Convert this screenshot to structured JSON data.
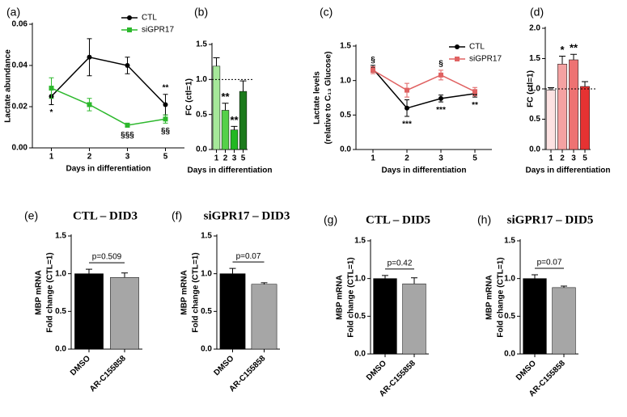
{
  "chart_data": [
    {
      "type": "line",
      "panel_label": "(a)",
      "ylabel": [
        "Lactate abundance"
      ],
      "xlabel": "Days in differentiation",
      "categories": [
        "1",
        "2",
        "3",
        "5"
      ],
      "series": [
        {
          "name": "CTL",
          "color": "#000000",
          "marker": "circle",
          "values": [
            0.025,
            0.044,
            0.04,
            0.021
          ],
          "errors": [
            0.004,
            0.009,
            0.004,
            0.005
          ],
          "significance": [
            "*",
            null,
            null,
            "**"
          ]
        },
        {
          "name": "siGPR17",
          "color": "#2db82d",
          "marker": "square",
          "values": [
            0.029,
            0.021,
            0.011,
            0.014
          ],
          "errors": [
            0.005,
            0.003,
            0.001,
            0.002
          ],
          "significance": [
            null,
            null,
            "§§§",
            "§§"
          ]
        }
      ],
      "ylim": [
        0,
        0.06
      ],
      "yticks": [
        {
          "value": 0,
          "label": "0.00"
        },
        {
          "value": 0.02,
          "label": "0.02"
        },
        {
          "value": 0.04,
          "label": "0.04"
        },
        {
          "value": 0.06,
          "label": "0.06"
        }
      ]
    },
    {
      "type": "bar",
      "panel_label": "(b)",
      "ylabel": [
        "FC (ctl=1)"
      ],
      "xlabel": "Days in differentiation",
      "categories": [
        "1",
        "2",
        "3",
        "5"
      ],
      "values": [
        1.19,
        0.56,
        0.28,
        0.83
      ],
      "errors": [
        0.12,
        0.1,
        0.05,
        0.15
      ],
      "colors": [
        "#a6e89a",
        "#55d04a",
        "#22b822",
        "#1b7a1b"
      ],
      "significance": [
        null,
        "**",
        "**",
        null
      ],
      "reference_line": 1,
      "ylim": [
        0,
        1.5
      ],
      "yticks": [
        {
          "value": 0,
          "label": "0.0"
        },
        {
          "value": 0.5,
          "label": "0.5"
        },
        {
          "value": 1,
          "label": "1.0"
        },
        {
          "value": 1.5,
          "label": "1.5"
        }
      ]
    },
    {
      "type": "line",
      "panel_label": "(c)",
      "ylabel": [
        "Lactate levels",
        "(relative to C₁₃ Glucose)"
      ],
      "xlabel": "Days in differentiation",
      "categories": [
        "1",
        "2",
        "3",
        "5"
      ],
      "series": [
        {
          "name": "CTL",
          "color": "#000000",
          "marker": "circle",
          "values": [
            1.17,
            0.6,
            0.74,
            0.81
          ],
          "errors": [
            0.05,
            0.12,
            0.05,
            0.05
          ],
          "significance": [
            null,
            "***",
            "***",
            "**"
          ]
        },
        {
          "name": "siGPR17",
          "color": "#e06262",
          "marker": "square",
          "values": [
            1.15,
            0.86,
            1.08,
            0.84
          ],
          "errors": [
            0.05,
            0.1,
            0.07,
            0.06
          ],
          "significance": [
            "§",
            null,
            "§",
            null
          ]
        }
      ],
      "ylim": [
        0,
        1.5
      ],
      "yticks": [
        {
          "value": 0,
          "label": "0.0"
        },
        {
          "value": 0.5,
          "label": "0.5"
        },
        {
          "value": 1,
          "label": "1.0"
        },
        {
          "value": 1.5,
          "label": "1.5"
        }
      ]
    },
    {
      "type": "bar",
      "panel_label": "(d)",
      "ylabel": [
        "FC (ctl=1)"
      ],
      "xlabel": "Days in differentiation",
      "categories": [
        "1",
        "2",
        "3",
        "5"
      ],
      "values": [
        0.98,
        1.41,
        1.48,
        1.04
      ],
      "errors": [
        0.04,
        0.13,
        0.09,
        0.08
      ],
      "colors": [
        "#fde2e2",
        "#f4a2a2",
        "#ee7272",
        "#e63232"
      ],
      "significance": [
        null,
        "*",
        "**",
        null
      ],
      "reference_line": 1,
      "ylim": [
        0,
        2
      ],
      "yticks": [
        {
          "value": 0,
          "label": "0.0"
        },
        {
          "value": 0.5,
          "label": "0.5"
        },
        {
          "value": 1,
          "label": "1.0"
        },
        {
          "value": 1.5,
          "label": "1.5"
        },
        {
          "value": 2,
          "label": "2.0"
        }
      ]
    },
    {
      "type": "bar",
      "panel_label": "(e)",
      "title": "CTL – DID3",
      "ylabel": [
        "MBP mRNA",
        "Fold change (CTL=1)"
      ],
      "categories": [
        "DMSO",
        "AR-C155858"
      ],
      "values": [
        1.0,
        0.95
      ],
      "errors": [
        0.06,
        0.06
      ],
      "colors": [
        "#000000",
        "#a6a6a6"
      ],
      "annotation": "p=0.509",
      "ylim": [
        0,
        1.5
      ],
      "yticks": [
        {
          "value": 0,
          "label": "0.0"
        },
        {
          "value": 0.5,
          "label": "0.5"
        },
        {
          "value": 1,
          "label": "1.0"
        },
        {
          "value": 1.5,
          "label": "1.5"
        }
      ]
    },
    {
      "type": "bar",
      "panel_label": "(f)",
      "title": "siGPR17 – DID3",
      "ylabel": [
        "MBP mRNA",
        "Fold change (CTL=1)"
      ],
      "categories": [
        "DMSO",
        "AR-C155858"
      ],
      "values": [
        1.0,
        0.86
      ],
      "errors": [
        0.07,
        0.02
      ],
      "colors": [
        "#000000",
        "#a6a6a6"
      ],
      "annotation": "p=0.07",
      "ylim": [
        0,
        1.5
      ],
      "yticks": [
        {
          "value": 0,
          "label": "0.0"
        },
        {
          "value": 0.5,
          "label": "0.5"
        },
        {
          "value": 1,
          "label": "1.0"
        },
        {
          "value": 1.5,
          "label": "1.5"
        }
      ]
    },
    {
      "type": "bar",
      "panel_label": "(g)",
      "title": "CTL – DID5",
      "ylabel": [
        "MBP mRNA",
        "Fold change (CTL=1)"
      ],
      "categories": [
        "DMSO",
        "AR-C155858"
      ],
      "values": [
        1.0,
        0.93
      ],
      "errors": [
        0.04,
        0.08
      ],
      "colors": [
        "#000000",
        "#a6a6a6"
      ],
      "annotation": "p=0.42",
      "ylim": [
        0,
        1.5
      ],
      "yticks": [
        {
          "value": 0,
          "label": "0.0"
        },
        {
          "value": 0.5,
          "label": "0.5"
        },
        {
          "value": 1,
          "label": "1.0"
        },
        {
          "value": 1.5,
          "label": "1.5"
        }
      ]
    },
    {
      "type": "bar",
      "panel_label": "(h)",
      "title": "siGPR17 – DID5",
      "ylabel": [
        "MBP mRNA",
        "Fold change (CTL=1)"
      ],
      "categories": [
        "DMSO",
        "AR-C155858"
      ],
      "values": [
        1.0,
        0.88
      ],
      "errors": [
        0.05,
        0.02
      ],
      "colors": [
        "#000000",
        "#a6a6a6"
      ],
      "annotation": "p=0.07",
      "ylim": [
        0,
        1.5
      ],
      "yticks": [
        {
          "value": 0,
          "label": "0.0"
        },
        {
          "value": 0.5,
          "label": "0.5"
        },
        {
          "value": 1,
          "label": "1.0"
        },
        {
          "value": 1.5,
          "label": "1.5"
        }
      ]
    }
  ]
}
